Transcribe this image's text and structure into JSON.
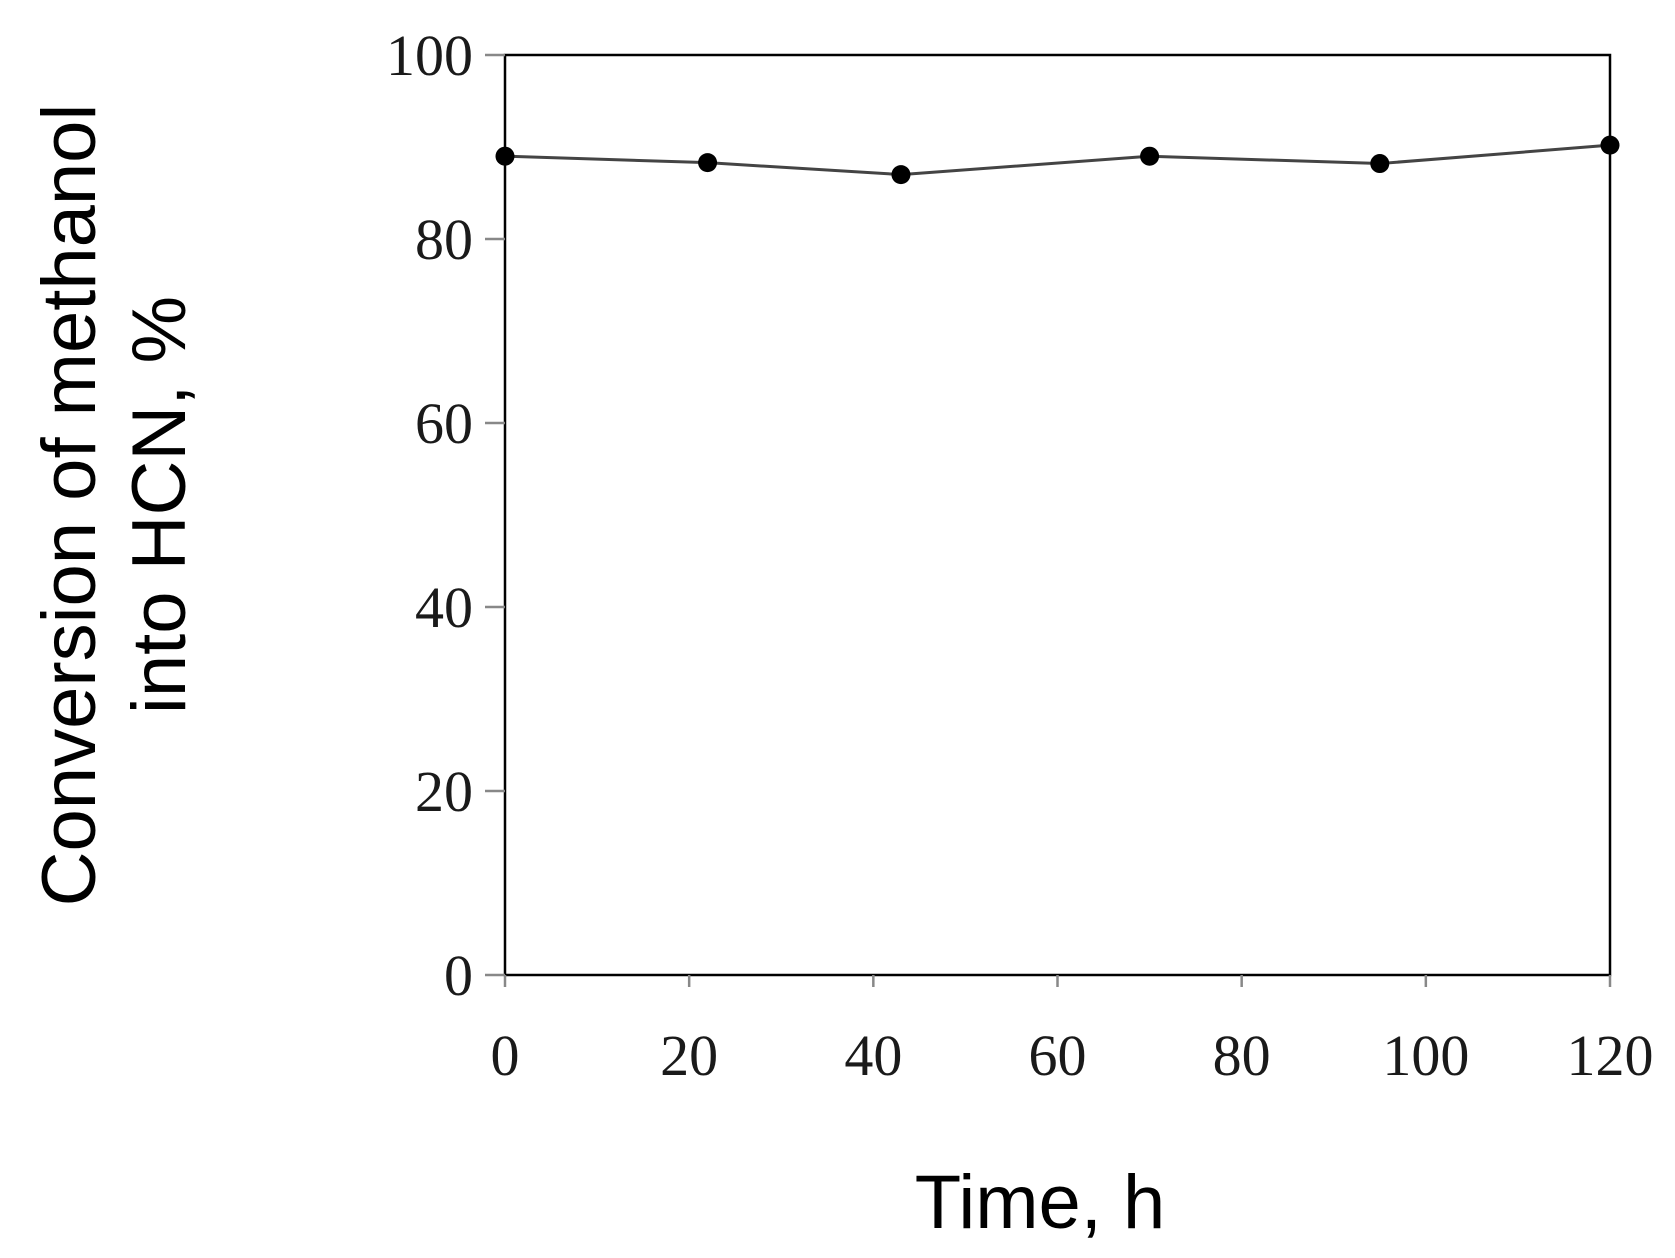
{
  "chart_data": {
    "type": "line",
    "title": "",
    "xlabel": "Time, h",
    "ylabel_lines": [
      "Conversion of methanol",
      "into HCN, %"
    ],
    "xlim": [
      0,
      120
    ],
    "ylim": [
      0,
      100
    ],
    "x_ticks": [
      0,
      20,
      40,
      60,
      80,
      100,
      120
    ],
    "y_ticks": [
      0,
      20,
      40,
      60,
      80,
      100
    ],
    "grid": false,
    "legend": "none",
    "series": [
      {
        "x": [
          0,
          22,
          43,
          70,
          95,
          120
        ],
        "y": [
          89,
          88.3,
          87,
          89,
          88.2,
          90.2
        ]
      }
    ],
    "colors": {
      "line": "#444444",
      "marker": "#000000",
      "axis": "#000000",
      "tick": "#888888"
    }
  }
}
